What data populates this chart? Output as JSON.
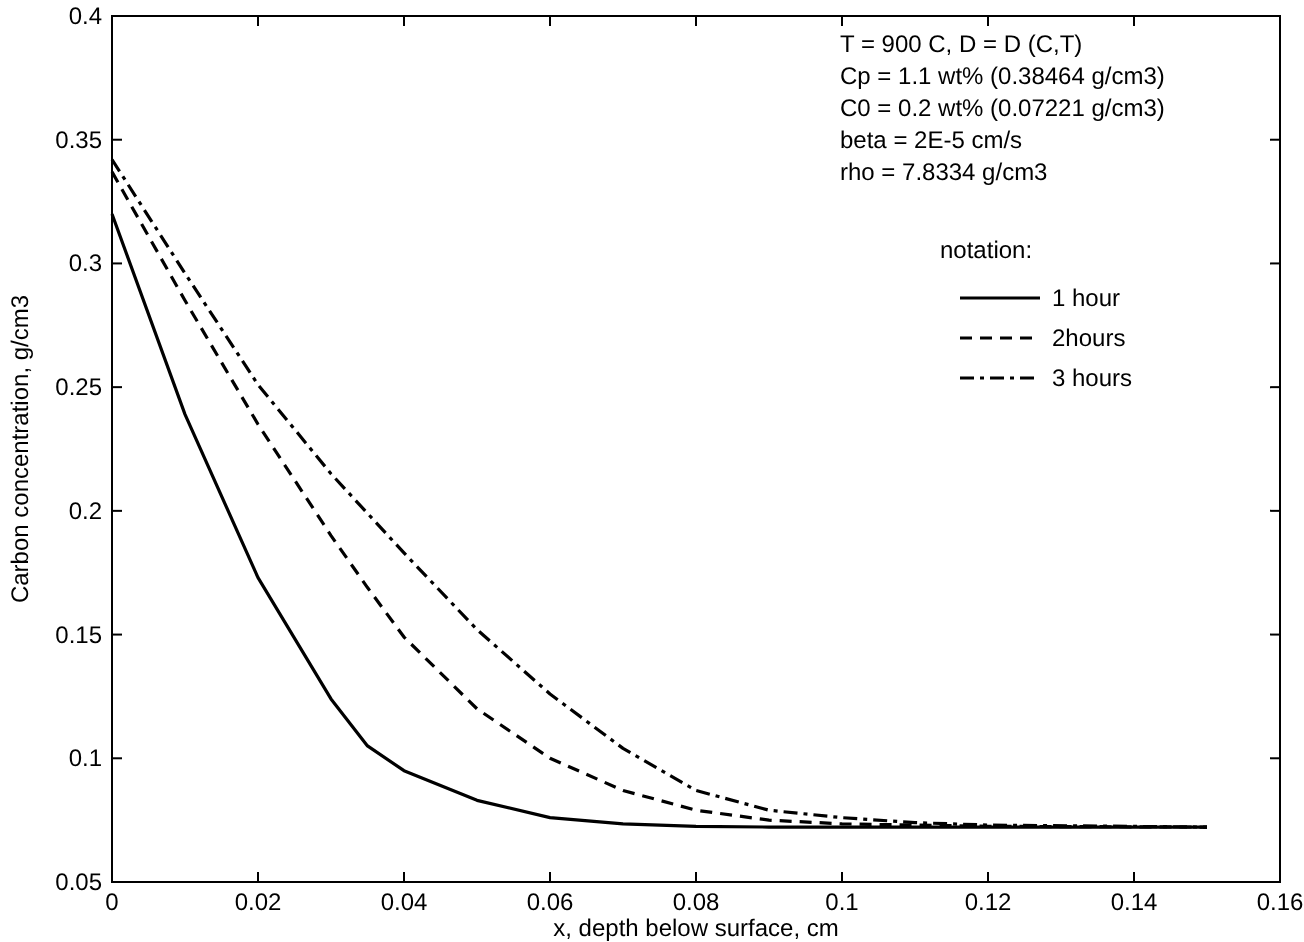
{
  "chart_data": {
    "type": "line",
    "xlabel": "x, depth below surface, cm",
    "ylabel": "Carbon concentration, g/cm3",
    "legend_title": "notation:",
    "legend": "top right",
    "grid": false,
    "annotations": [
      "T = 900 C,  D = D (C,T)",
      "Cp = 1.1 wt% (0.38464 g/cm3)",
      "C0 = 0.2 wt% (0.07221 g/cm3)",
      "beta = 2E-5 cm/s",
      "rho = 7.8334 g/cm3"
    ],
    "xlim": [
      0,
      0.16
    ],
    "xticks": [
      0,
      0.02,
      0.04,
      0.06,
      0.08,
      0.1,
      0.12,
      0.14,
      0.16
    ],
    "ylim": [
      0.05,
      0.4
    ],
    "yticks": [
      0.05,
      0.1,
      0.15,
      0.2,
      0.25,
      0.3,
      0.35,
      0.4
    ],
    "x": [
      0,
      0.01,
      0.02,
      0.03,
      0.035,
      0.04,
      0.05,
      0.06,
      0.07,
      0.08,
      0.09,
      0.1,
      0.11,
      0.12,
      0.15
    ],
    "series": [
      {
        "name": "1 hour",
        "color": "#000000",
        "line_style": "solid",
        "values": [
          0.32,
          0.239,
          0.173,
          0.124,
          0.105,
          0.095,
          0.083,
          0.076,
          0.0735,
          0.0725,
          0.0722,
          0.0722,
          0.0722,
          0.0722,
          0.0722
        ]
      },
      {
        "name": "2hours",
        "color": "#000000",
        "line_style": "dashed",
        "values": [
          0.337,
          0.285,
          0.235,
          0.19,
          0.169,
          0.149,
          0.12,
          0.1,
          0.087,
          0.079,
          0.075,
          0.0735,
          0.073,
          0.0725,
          0.0722
        ]
      },
      {
        "name": "3 hours",
        "color": "#000000",
        "line_style": "dashdot",
        "values": [
          0.342,
          0.296,
          0.251,
          0.215,
          0.199,
          0.183,
          0.152,
          0.126,
          0.104,
          0.087,
          0.079,
          0.076,
          0.074,
          0.073,
          0.0722
        ]
      }
    ]
  }
}
